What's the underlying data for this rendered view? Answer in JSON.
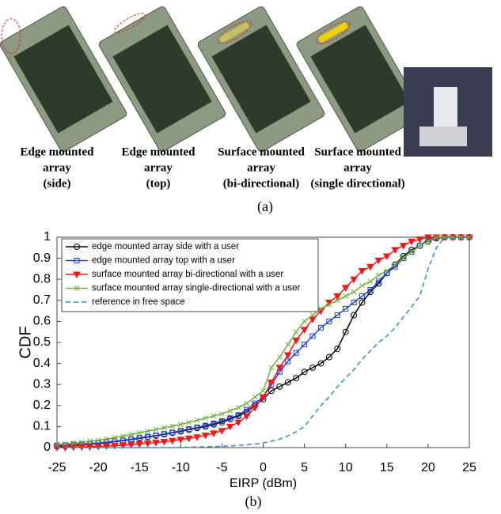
{
  "figure": {
    "captions": [
      [
        "Edge mounted",
        "array",
        "(side)"
      ],
      [
        "Edge mounted",
        "array",
        "(top)"
      ],
      [
        "Surface mounted",
        "array",
        "(bi-directional)"
      ],
      [
        "Surface mounted",
        "array",
        "(single directional)"
      ]
    ],
    "label_a": "(a)",
    "label_b": "(b)"
  },
  "chart_data": {
    "type": "line",
    "xlabel": "EIRP (dBm)",
    "ylabel": "CDF",
    "x": [
      -25,
      -24,
      -23,
      -22,
      -21,
      -20,
      -19,
      -18,
      -17,
      -16,
      -15,
      -14,
      -13,
      -12,
      -11,
      -10,
      -9,
      -8,
      -7,
      -6,
      -5,
      -4,
      -3,
      -2,
      -1,
      0,
      1,
      2,
      3,
      4,
      5,
      6,
      7,
      8,
      9,
      10,
      11,
      12,
      13,
      14,
      15,
      16,
      17,
      18,
      19,
      20,
      21,
      22,
      23,
      24,
      25
    ],
    "xlim": [
      -25,
      25
    ],
    "xticks": [
      -25,
      -20,
      -15,
      -10,
      -5,
      0,
      5,
      10,
      15,
      20,
      25
    ],
    "ylim": [
      0,
      1
    ],
    "yticks": [
      0,
      0.1,
      0.2,
      0.3,
      0.4,
      0.5,
      0.6,
      0.7,
      0.8,
      0.9,
      1
    ],
    "grid": false,
    "legend": "upper-left",
    "series": [
      {
        "name": "edge mounted array side with a user",
        "color": "#000000",
        "marker": "circle",
        "dash": false,
        "values": [
          0.005,
          0.007,
          0.01,
          0.012,
          0.015,
          0.02,
          0.024,
          0.028,
          0.033,
          0.038,
          0.044,
          0.05,
          0.056,
          0.063,
          0.07,
          0.077,
          0.085,
          0.093,
          0.1,
          0.11,
          0.12,
          0.135,
          0.15,
          0.17,
          0.2,
          0.23,
          0.27,
          0.29,
          0.31,
          0.33,
          0.36,
          0.38,
          0.4,
          0.43,
          0.47,
          0.55,
          0.63,
          0.69,
          0.74,
          0.78,
          0.83,
          0.87,
          0.91,
          0.94,
          0.96,
          0.98,
          0.995,
          1,
          1,
          1,
          1
        ]
      },
      {
        "name": "edge mounted array top with a user",
        "color": "#1f3fe0",
        "marker": "square",
        "dash": false,
        "values": [
          0.01,
          0.012,
          0.015,
          0.017,
          0.019,
          0.022,
          0.026,
          0.03,
          0.035,
          0.04,
          0.046,
          0.052,
          0.058,
          0.065,
          0.072,
          0.08,
          0.088,
          0.096,
          0.105,
          0.115,
          0.126,
          0.14,
          0.155,
          0.18,
          0.21,
          0.24,
          0.3,
          0.36,
          0.41,
          0.45,
          0.49,
          0.53,
          0.57,
          0.6,
          0.63,
          0.66,
          0.69,
          0.72,
          0.75,
          0.79,
          0.83,
          0.86,
          0.9,
          0.93,
          0.96,
          0.99,
          1,
          1,
          1,
          1,
          1
        ]
      },
      {
        "name": "surface mounted array bi-directional with a user",
        "color": "#f01818",
        "marker": "triangle",
        "dash": false,
        "values": [
          0,
          0,
          0.002,
          0.003,
          0.004,
          0.005,
          0.007,
          0.009,
          0.011,
          0.014,
          0.017,
          0.02,
          0.024,
          0.028,
          0.033,
          0.038,
          0.044,
          0.05,
          0.058,
          0.068,
          0.08,
          0.1,
          0.12,
          0.15,
          0.19,
          0.24,
          0.31,
          0.38,
          0.44,
          0.51,
          0.56,
          0.61,
          0.65,
          0.69,
          0.72,
          0.76,
          0.8,
          0.84,
          0.86,
          0.89,
          0.91,
          0.94,
          0.96,
          0.98,
          0.99,
          1,
          1,
          1,
          1,
          1,
          1
        ]
      },
      {
        "name": "surface mounted array single-directional with a user",
        "color": "#6fb040",
        "marker": "x",
        "dash": false,
        "values": [
          0.015,
          0.018,
          0.021,
          0.025,
          0.03,
          0.035,
          0.041,
          0.047,
          0.054,
          0.062,
          0.07,
          0.078,
          0.086,
          0.094,
          0.102,
          0.11,
          0.12,
          0.13,
          0.14,
          0.15,
          0.16,
          0.175,
          0.19,
          0.21,
          0.24,
          0.27,
          0.38,
          0.43,
          0.49,
          0.55,
          0.6,
          0.63,
          0.66,
          0.68,
          0.7,
          0.72,
          0.74,
          0.77,
          0.79,
          0.82,
          0.84,
          0.87,
          0.9,
          0.93,
          0.96,
          0.98,
          1,
          1,
          1,
          1,
          1
        ]
      },
      {
        "name": "reference in free space",
        "color": "#2a8fd6",
        "marker": "none",
        "dash": true,
        "values": [
          0,
          0,
          0,
          0,
          0,
          0,
          0,
          0,
          0,
          0,
          0,
          0,
          0,
          0,
          0,
          0.001,
          0.002,
          0.003,
          0.004,
          0.005,
          0.006,
          0.008,
          0.01,
          0.013,
          0.017,
          0.022,
          0.03,
          0.04,
          0.055,
          0.075,
          0.1,
          0.15,
          0.2,
          0.24,
          0.29,
          0.33,
          0.37,
          0.42,
          0.46,
          0.5,
          0.53,
          0.57,
          0.62,
          0.67,
          0.72,
          0.85,
          0.95,
          1,
          1,
          1,
          1
        ]
      }
    ]
  }
}
